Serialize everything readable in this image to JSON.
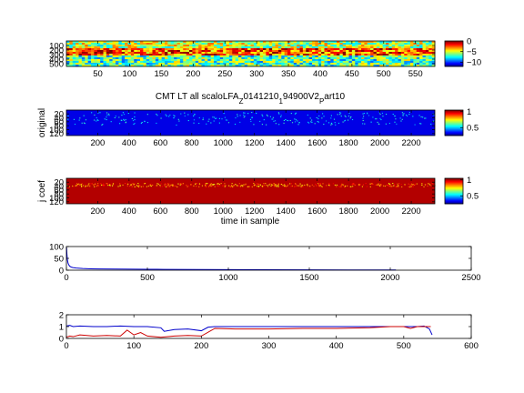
{
  "figure": {
    "title_parts": [
      "CMT LT all scaloLFA",
      "Z",
      "0141210",
      "1",
      "94900V2",
      "P",
      "art10"
    ]
  },
  "chart_data": [
    {
      "id": "p1",
      "type": "heatmap",
      "colormap": "jet",
      "xticks": [
        50,
        100,
        150,
        200,
        250,
        300,
        350,
        400,
        450,
        500,
        550
      ],
      "xlim": [
        0.5,
        580.5
      ],
      "yticks": [
        100,
        200,
        300,
        400,
        500
      ],
      "ylim": [
        0.5,
        560.5
      ],
      "yreverse": true,
      "colorbar": {
        "ticks": [
          0,
          -5,
          -10
        ],
        "range": [
          -12,
          0
        ]
      },
      "rows": 14,
      "bands": [
        {
          "from": 0.0,
          "to": 0.22,
          "level": 0.55
        },
        {
          "from": 0.22,
          "to": 0.55,
          "level": 0.8
        },
        {
          "from": 0.55,
          "to": 1.0,
          "level": 0.45
        }
      ]
    },
    {
      "id": "p2",
      "type": "heatmap",
      "colormap": "jet",
      "ylabel": "original",
      "xticks": [
        200,
        400,
        600,
        800,
        1000,
        1200,
        1400,
        1600,
        1800,
        2000,
        2200
      ],
      "xlim": [
        0.5,
        2350.5
      ],
      "yticks": [
        20,
        40,
        60,
        80,
        100,
        120
      ],
      "ylim": [
        0.5,
        130
      ],
      "yreverse": true,
      "colorbar": {
        "ticks": [
          1,
          0.5
        ],
        "range": [
          0.25,
          1.05
        ]
      },
      "base_level": 0.1,
      "speckle_level": 0.3
    },
    {
      "id": "p3",
      "type": "heatmap",
      "colormap": "jet",
      "ylabel": "j coef",
      "xlabel": "time in sample",
      "xticks": [
        200,
        400,
        600,
        800,
        1000,
        1200,
        1400,
        1600,
        1800,
        2000,
        2200
      ],
      "xlim": [
        0.5,
        2350.5
      ],
      "yticks": [
        20,
        40,
        60,
        80,
        100,
        120
      ],
      "ylim": [
        0.5,
        130
      ],
      "yreverse": true,
      "colorbar": {
        "ticks": [
          1,
          0.5
        ],
        "range": [
          0.25,
          1.05
        ]
      },
      "base_level": 0.95,
      "stripe_level": 0.6
    },
    {
      "id": "p4",
      "type": "line",
      "xticks": [
        0,
        500,
        1000,
        1500,
        2000,
        2500
      ],
      "xlim": [
        0,
        2500
      ],
      "yticks": [
        0,
        50,
        100
      ],
      "ylim": [
        0,
        100
      ],
      "series": [
        {
          "color": "#0000cc",
          "x": [
            1,
            3,
            6,
            10,
            15,
            20,
            30,
            40,
            60,
            80,
            100,
            150,
            200,
            300,
            400,
            500,
            560,
            600,
            800,
            1000,
            1200,
            1500,
            1800,
            2000,
            2035
          ],
          "y": [
            96,
            70,
            45,
            30,
            22,
            17,
            13,
            11,
            9,
            8,
            7,
            6,
            5.5,
            5,
            4.5,
            4,
            4,
            3.5,
            3,
            2.5,
            2,
            1.5,
            1,
            1,
            1
          ]
        }
      ]
    },
    {
      "id": "p5",
      "type": "line",
      "xticks": [
        0,
        100,
        200,
        300,
        400,
        500,
        600
      ],
      "xlim": [
        0,
        600
      ],
      "yticks": [
        0,
        1,
        2
      ],
      "ylim": [
        0,
        2
      ],
      "series": [
        {
          "color": "#0000cc",
          "x": [
            0,
            5,
            10,
            20,
            40,
            60,
            80,
            100,
            120,
            140,
            145,
            160,
            180,
            200,
            210,
            220,
            240,
            300,
            350,
            400,
            450,
            500,
            520,
            530,
            538,
            542
          ],
          "y": [
            1.05,
            1.1,
            1.0,
            1.05,
            1.0,
            1.0,
            1.05,
            1.0,
            1.0,
            0.9,
            0.6,
            0.75,
            0.8,
            0.65,
            0.95,
            1.0,
            1.0,
            1.0,
            1.0,
            1.0,
            1.0,
            1.0,
            1.0,
            1.05,
            0.8,
            0.3
          ]
        },
        {
          "color": "#cc0000",
          "x": [
            0,
            5,
            10,
            20,
            40,
            60,
            80,
            90,
            100,
            110,
            120,
            140,
            160,
            180,
            200,
            220,
            250,
            300,
            350,
            400,
            450,
            480,
            500,
            510,
            520,
            530,
            540
          ],
          "y": [
            0.1,
            0.2,
            0.15,
            0.3,
            0.2,
            0.25,
            0.2,
            0.7,
            0.3,
            0.5,
            0.2,
            0.1,
            0.2,
            0.25,
            0.2,
            0.85,
            0.8,
            0.8,
            0.85,
            0.85,
            0.9,
            1.0,
            1.0,
            0.85,
            1.0,
            1.0,
            1.0
          ]
        }
      ]
    }
  ]
}
